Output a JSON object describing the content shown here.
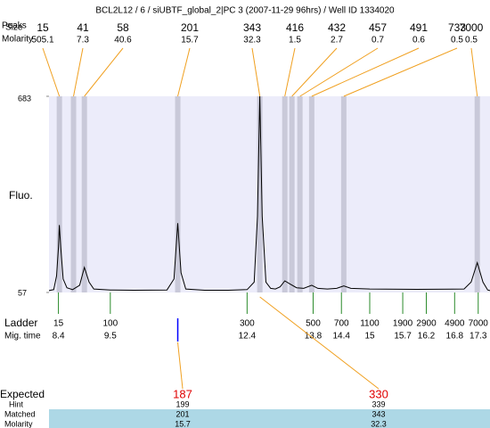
{
  "chart_data": {
    "type": "electropherogram",
    "title": "BCL2L12 / 6 / siUBTF_global_2|PC 3 (2007-11-29 96hrs) / Well ID 1334020",
    "peak_row_labels": [
      "Peaks",
      "Size",
      "Molarity"
    ],
    "peaks": {
      "size": [
        15,
        41,
        58,
        201,
        343,
        416,
        432,
        457,
        491,
        733,
        7000
      ],
      "molarity": [
        505.1,
        7.3,
        40.6,
        15.7,
        32.3,
        1.5,
        2.7,
        0.7,
        0.6,
        0.5,
        0.5
      ],
      "time": [
        8.42,
        8.72,
        8.95,
        10.93,
        12.67,
        13.2,
        13.35,
        13.52,
        13.77,
        14.45,
        17.28
      ]
    },
    "ylabel": "Fluo.",
    "ylim": [
      57,
      683
    ],
    "yticks": [
      57,
      683
    ],
    "xlim": [
      8.2,
      17.55
    ],
    "trace": {
      "color": "#000000",
      "x": [
        8.2,
        8.3,
        8.36,
        8.4,
        8.42,
        8.45,
        8.5,
        8.58,
        8.7,
        8.85,
        8.95,
        9.05,
        9.15,
        9.5,
        10.0,
        10.7,
        10.85,
        10.93,
        11.0,
        11.1,
        11.5,
        12.0,
        12.4,
        12.55,
        12.62,
        12.67,
        12.72,
        12.8,
        12.9,
        13.0,
        13.1,
        13.2,
        13.3,
        13.45,
        13.6,
        13.77,
        13.9,
        14.1,
        14.3,
        14.45,
        14.6,
        15.0,
        16.0,
        17.0,
        17.15,
        17.28,
        17.4,
        17.5,
        17.55
      ],
      "y": [
        63,
        66,
        110,
        200,
        272,
        200,
        100,
        72,
        66,
        80,
        137,
        90,
        68,
        65,
        64,
        65,
        100,
        278,
        120,
        68,
        64,
        64,
        66,
        90,
        300,
        683,
        300,
        90,
        70,
        68,
        75,
        94,
        85,
        72,
        70,
        80,
        70,
        68,
        70,
        78,
        70,
        68,
        67,
        68,
        90,
        152,
        90,
        65,
        63
      ]
    },
    "ladder": {
      "label": "Ladder",
      "time_label": "Mig. time",
      "sizes": [
        15,
        100,
        300,
        500,
        700,
        1100,
        1900,
        2900,
        4900,
        7000
      ],
      "times": [
        8.4,
        9.5,
        12.4,
        13.8,
        14.4,
        15,
        15.7,
        16.2,
        16.8,
        17.3
      ]
    },
    "table": {
      "row_labels": [
        "Expected",
        "Hint",
        "Matched",
        "Molarity"
      ],
      "expected": [
        187,
        330
      ],
      "hint": [
        199,
        339
      ],
      "matched": [
        201,
        343
      ],
      "molarity": [
        15.7,
        32.3
      ]
    }
  }
}
